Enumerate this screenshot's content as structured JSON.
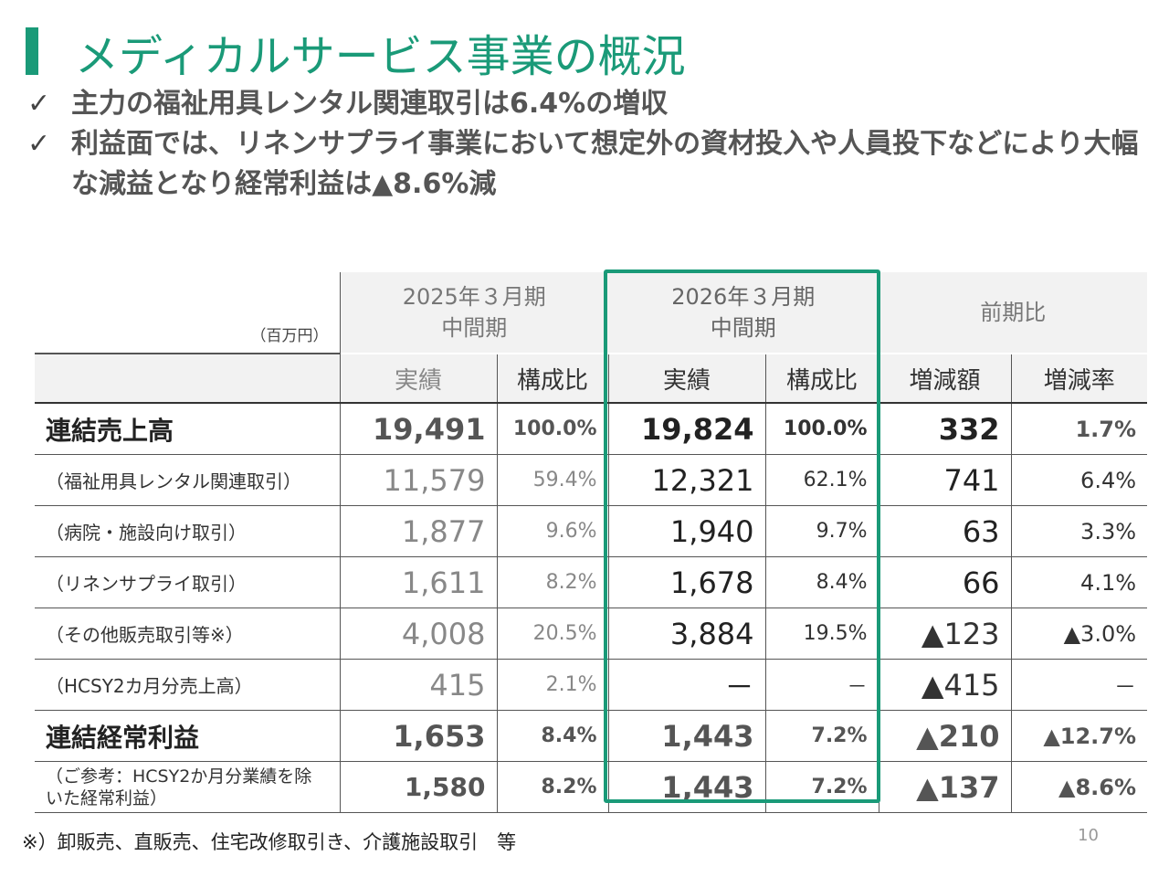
{
  "header": {
    "title": "メディカルサービス事業の概況",
    "check_mark": "✓",
    "bullets": [
      "主力の福祉用具レンタル関連取引は6.4%の増収",
      "利益面では、リネンサプライ事業において想定外の資材投入や人員投下などにより大幅な減益となり経常利益は▲8.6%減"
    ]
  },
  "table": {
    "unit": "（百万円）",
    "period_prev": {
      "line1": "2025年３月期",
      "line2": "中間期"
    },
    "period_cur": {
      "line1": "2026年３月期",
      "line2": "中間期"
    },
    "comparison": "前期比",
    "sub_headers": {
      "actual": "実績",
      "ratio": "構成比",
      "change_amount": "増減額",
      "change_rate": "増減率"
    },
    "rows": [
      {
        "label": "連結売上高",
        "prev": "19,491",
        "prev_ratio": "100.0%",
        "cur": "19,824",
        "cur_ratio": "100.0%",
        "diff": "332",
        "rate": "1.7%"
      },
      {
        "label": "（福祉用具レンタル関連取引）",
        "prev": "11,579",
        "prev_ratio": "59.4%",
        "cur": "12,321",
        "cur_ratio": "62.1%",
        "diff": "741",
        "rate": "6.4%"
      },
      {
        "label": "（病院・施設向け取引）",
        "prev": "1,877",
        "prev_ratio": "9.6%",
        "cur": "1,940",
        "cur_ratio": "9.7%",
        "diff": "63",
        "rate": "3.3%"
      },
      {
        "label": "（リネンサプライ取引）",
        "prev": "1,611",
        "prev_ratio": "8.2%",
        "cur": "1,678",
        "cur_ratio": "8.4%",
        "diff": "66",
        "rate": "4.1%"
      },
      {
        "label": "（その他販売取引等※）",
        "prev": "4,008",
        "prev_ratio": "20.5%",
        "cur": "3,884",
        "cur_ratio": "19.5%",
        "diff": "▲123",
        "rate": "▲3.0%"
      },
      {
        "label": "（HCSY2カ月分売上高）",
        "prev": "415",
        "prev_ratio": "2.1%",
        "cur": "－",
        "cur_ratio": "－",
        "diff": "▲415",
        "rate": "－"
      },
      {
        "label": "連結経常利益",
        "prev": "1,653",
        "prev_ratio": "8.4%",
        "cur": "1,443",
        "cur_ratio": "7.2%",
        "diff": "▲210",
        "rate": "▲12.7%"
      },
      {
        "label": "（ご参考：HCSY2か月分業績を除いた経常利益）",
        "prev": "1,580",
        "prev_ratio": "8.2%",
        "cur": "1,443",
        "cur_ratio": "7.2%",
        "diff": "▲137",
        "rate": "▲8.6%"
      }
    ]
  },
  "footnote": "※）卸販売、直販売、住宅改修取引き、介護施設取引　等",
  "page_number": "10",
  "colors": {
    "accent": "#1a9a78"
  }
}
